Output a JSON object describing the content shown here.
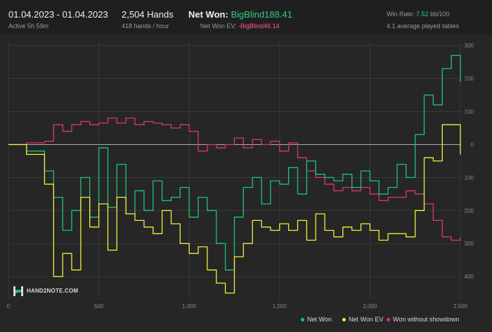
{
  "header": {
    "date_range": "01.04.2023 - 01.04.2023",
    "active": "Active 5h 59m",
    "hands": "2,504 Hands",
    "hands_per_hour": "418 hands / hour",
    "net_won_label": "Net Won:",
    "net_won_value": "BigBlind188.41",
    "net_won_ev_label": "Net Won  EV:",
    "net_won_ev_value": "-BigBlind46.14",
    "win_rate_label": "Win Rate:",
    "win_rate_value": "7.52",
    "win_rate_unit": "bb/100",
    "tables": "4.1 average played tables"
  },
  "logo_text": "HAND2NOTE.COM",
  "colors": {
    "net_won": "#1ec47a",
    "net_won_ev": "#f2ee3c",
    "won_without_showdown": "#d9347a",
    "positive_text": "#33cc80",
    "negative_text": "#ff5c8f"
  },
  "chart_data": {
    "type": "line",
    "xlim": [
      0,
      2504
    ],
    "ylim": [
      -470,
      310
    ],
    "x_ticks": [
      0,
      500,
      1000,
      1500,
      2000,
      2500
    ],
    "x_tick_labels": [
      "0",
      "500",
      "1,000",
      "1,500",
      "2,000",
      "2,500"
    ],
    "y_ticks": [
      300,
      200,
      100,
      0,
      -100,
      -200,
      -300,
      -400
    ],
    "y_tick_labels": [
      "300",
      "200",
      "100",
      "0",
      "100",
      "200",
      "300",
      "400"
    ],
    "grid": true,
    "legend_position": "bottom-right",
    "series": [
      {
        "name": "Net Won",
        "color": "#1ec47a",
        "x": [
          0,
          100,
          200,
          250,
          300,
          350,
          400,
          450,
          500,
          550,
          600,
          650,
          700,
          750,
          800,
          850,
          900,
          950,
          1000,
          1050,
          1100,
          1150,
          1200,
          1250,
          1300,
          1350,
          1400,
          1450,
          1500,
          1550,
          1600,
          1650,
          1700,
          1750,
          1800,
          1850,
          1900,
          1950,
          2000,
          2050,
          2100,
          2150,
          2200,
          2250,
          2300,
          2350,
          2400,
          2450,
          2500
        ],
        "y": [
          0,
          -20,
          -80,
          -160,
          -260,
          -200,
          -100,
          -220,
          -10,
          -190,
          -60,
          -210,
          -140,
          -200,
          -110,
          -170,
          -160,
          -130,
          -220,
          -160,
          -200,
          -300,
          -380,
          -220,
          -130,
          -100,
          -180,
          -110,
          -120,
          -70,
          -150,
          -50,
          -90,
          -100,
          -110,
          -90,
          -130,
          -80,
          -110,
          -150,
          -130,
          -60,
          -100,
          30,
          150,
          120,
          230,
          270,
          190
        ]
      },
      {
        "name": "Net Won  EV",
        "color": "#f2ee3c",
        "x": [
          0,
          100,
          200,
          250,
          300,
          350,
          400,
          450,
          500,
          550,
          600,
          650,
          700,
          750,
          800,
          850,
          900,
          950,
          1000,
          1050,
          1100,
          1150,
          1200,
          1250,
          1300,
          1350,
          1400,
          1450,
          1500,
          1550,
          1600,
          1650,
          1700,
          1750,
          1800,
          1850,
          1900,
          1950,
          2000,
          2050,
          2100,
          2150,
          2200,
          2250,
          2300,
          2350,
          2400,
          2450,
          2500
        ],
        "y": [
          0,
          -30,
          -120,
          -400,
          -330,
          -380,
          -160,
          -250,
          -180,
          -320,
          -160,
          -210,
          -230,
          -250,
          -270,
          -200,
          -240,
          -300,
          -330,
          -310,
          -380,
          -420,
          -450,
          -340,
          -300,
          -230,
          -250,
          -260,
          -240,
          -260,
          -230,
          -290,
          -210,
          -260,
          -280,
          -250,
          -260,
          -240,
          -260,
          -290,
          -270,
          -270,
          -280,
          -200,
          -40,
          -50,
          60,
          60,
          -30
        ]
      },
      {
        "name": "Won without showdown",
        "color": "#d9347a",
        "x": [
          0,
          100,
          200,
          250,
          300,
          350,
          400,
          450,
          500,
          550,
          600,
          650,
          700,
          750,
          800,
          850,
          900,
          950,
          1000,
          1050,
          1100,
          1150,
          1200,
          1250,
          1300,
          1350,
          1400,
          1450,
          1500,
          1550,
          1600,
          1650,
          1700,
          1750,
          1800,
          1850,
          1900,
          1950,
          2000,
          2050,
          2100,
          2150,
          2200,
          2250,
          2300,
          2350,
          2400,
          2450,
          2500
        ],
        "y": [
          0,
          5,
          10,
          60,
          40,
          60,
          70,
          60,
          65,
          80,
          65,
          80,
          60,
          70,
          65,
          60,
          50,
          60,
          40,
          -20,
          0,
          -10,
          0,
          20,
          -10,
          15,
          0,
          10,
          -20,
          5,
          -40,
          -80,
          -100,
          -120,
          -140,
          -130,
          -140,
          -130,
          -150,
          -170,
          -160,
          -160,
          -140,
          -150,
          -180,
          -230,
          -280,
          -290,
          -280
        ]
      }
    ]
  }
}
